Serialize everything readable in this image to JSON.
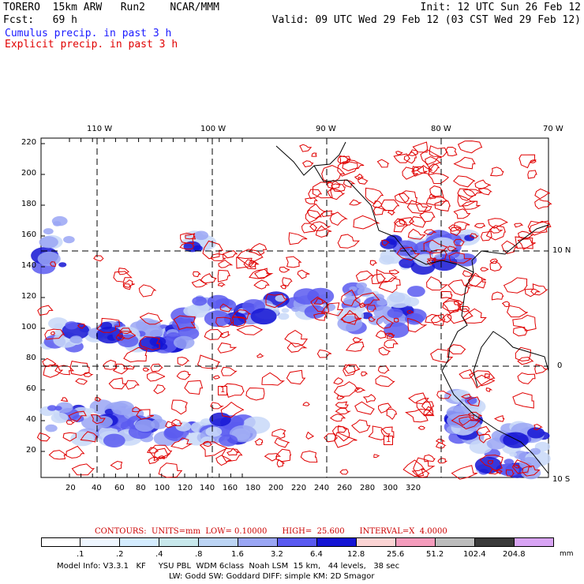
{
  "header": {
    "model": "TORERO  15km ARW   Run2    NCAR/MMM",
    "forecast": "Fcst:   69 h",
    "init": "Init: 12 UTC Sun 26 Feb 12",
    "valid": "Valid: 09 UTC Wed 29 Feb 12 (03 CST Wed 29 Feb 12)"
  },
  "legend": {
    "cumulus": "Cumulus precip. in past 3 h",
    "explicit": "Explicit precip. in past 3 h"
  },
  "map": {
    "lon_labels": [
      "110 W",
      "100 W",
      "90 W",
      "80 W",
      "70 W"
    ],
    "lat_labels": [
      "10 N",
      "0",
      "10 S"
    ],
    "x_ticks": [
      "20",
      "40",
      "60",
      "80",
      "100",
      "120",
      "140",
      "160",
      "180",
      "200",
      "220",
      "240",
      "260",
      "280",
      "300",
      "320"
    ],
    "y_ticks": [
      "220",
      "200",
      "180",
      "160",
      "140",
      "120",
      "100",
      "80",
      "60",
      "40",
      "20"
    ],
    "contour_labels": [
      "1",
      "1"
    ]
  },
  "colors": {
    "cumulus": "#2222dd",
    "explicit": "#e00000",
    "coast": "#000000"
  },
  "contour_info": "CONTOURS:  UNITS=mm  LOW= 0.10000      HIGH=  25.600      INTERVAL=X  4.0000",
  "colorbar": {
    "labels": [
      ".1",
      ".2",
      ".4",
      ".8",
      "1.6",
      "3.2",
      "6.4",
      "12.8",
      "25.6",
      "51.2",
      "102.4",
      "204.8"
    ],
    "colors": [
      "#ffffff",
      "#eef6ff",
      "#d4ecff",
      "#c8e8ec",
      "#bcd4f4",
      "#9aa6f4",
      "#5a5af0",
      "#1414d4",
      "#fcd4d4",
      "#f49cbc",
      "#bcbcbc",
      "#3a3a3a",
      "#d8a4f4"
    ],
    "unit": "mm"
  },
  "model_info": {
    "line1": "Model Info: V3.3.1   KF     YSU PBL  WDM 6class  Noah LSM  15 km,   44 levels,   38 sec",
    "line2": "LW: Godd SW: Goddard DIFF: simple KM: 2D Smagor"
  }
}
